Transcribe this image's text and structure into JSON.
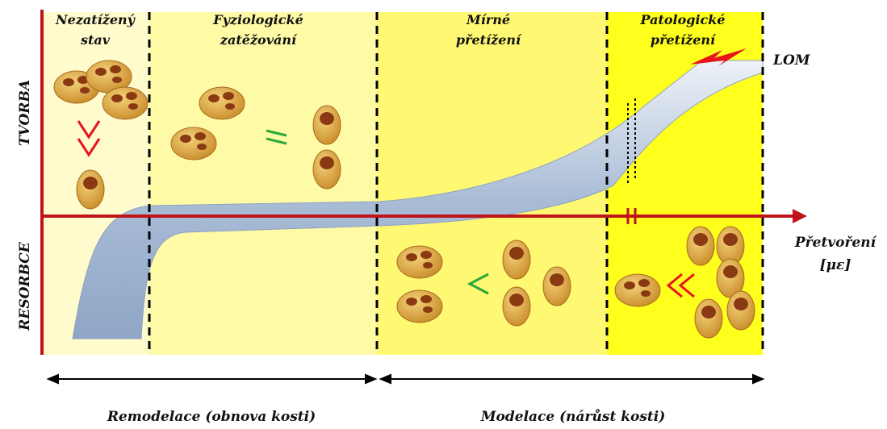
{
  "axes": {
    "y_top": "TVORBA",
    "y_bottom": "RESORBCE",
    "x_label": [
      "Přetvoření",
      "[με]"
    ]
  },
  "zones": [
    {
      "lines": [
        "Nezatížený",
        "stav"
      ]
    },
    {
      "lines": [
        "Fyziologické",
        "zatěžování"
      ]
    },
    {
      "lines": [
        "Mírné",
        "přetížení"
      ]
    },
    {
      "lines": [
        "Patologické",
        "přetížení"
      ]
    }
  ],
  "fracture": "LOM",
  "ranges": [
    "Remodelace (obnova kosti)",
    "Modelace (nárůst kosti)"
  ]
}
